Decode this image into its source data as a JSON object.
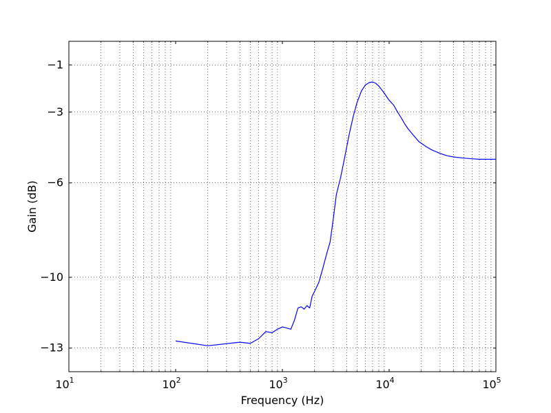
{
  "chart_data": {
    "type": "line",
    "xscale": "log",
    "xlabel": "Frequency (Hz)",
    "ylabel": "Gain (dB)",
    "xlim": [
      10,
      100000
    ],
    "ylim": [
      -14,
      0
    ],
    "grid": true,
    "x_ticks": [
      {
        "value": 10,
        "mantissa": "10",
        "exp": "1"
      },
      {
        "value": 100,
        "mantissa": "10",
        "exp": "2"
      },
      {
        "value": 1000,
        "mantissa": "10",
        "exp": "3"
      },
      {
        "value": 10000,
        "mantissa": "10",
        "exp": "4"
      },
      {
        "value": 100000,
        "mantissa": "10",
        "exp": "5"
      }
    ],
    "y_ticks": [
      {
        "value": -1,
        "label": "−1"
      },
      {
        "value": -3,
        "label": "−3"
      },
      {
        "value": -6,
        "label": "−6"
      },
      {
        "value": -10,
        "label": "−10"
      },
      {
        "value": -13,
        "label": "−13"
      }
    ],
    "series": [
      {
        "color": "#0000ff",
        "x": [
          100,
          200,
          400,
          500,
          600,
          700,
          800,
          900,
          1000,
          1100,
          1200,
          1300,
          1400,
          1500,
          1600,
          1700,
          1800,
          1900,
          2000,
          2200,
          2400,
          2600,
          2800,
          3000,
          3200,
          3500,
          3800,
          4200,
          4600,
          5000,
          5500,
          6000,
          6500,
          7000,
          7500,
          8000,
          8500,
          9000,
          9500,
          10000,
          11000,
          12000,
          13000,
          14000,
          15000,
          17000,
          19000,
          22000,
          25000,
          30000,
          35000,
          40000,
          50000,
          60000,
          70000,
          80000,
          90000,
          100000
        ],
        "y": [
          -12.7,
          -12.9,
          -12.75,
          -12.8,
          -12.6,
          -12.3,
          -12.35,
          -12.2,
          -12.1,
          -12.15,
          -12.2,
          -11.8,
          -11.3,
          -11.25,
          -11.35,
          -11.2,
          -11.3,
          -10.8,
          -10.6,
          -10.2,
          -9.6,
          -9.0,
          -8.5,
          -7.5,
          -6.5,
          -5.8,
          -5.0,
          -4.0,
          -3.2,
          -2.6,
          -2.1,
          -1.85,
          -1.75,
          -1.72,
          -1.78,
          -1.9,
          -2.05,
          -2.2,
          -2.35,
          -2.5,
          -2.7,
          -3.0,
          -3.25,
          -3.5,
          -3.7,
          -4.0,
          -4.25,
          -4.45,
          -4.6,
          -4.75,
          -4.85,
          -4.9,
          -4.95,
          -4.98,
          -5.0,
          -5.0,
          -5.0,
          -5.0
        ]
      }
    ]
  }
}
